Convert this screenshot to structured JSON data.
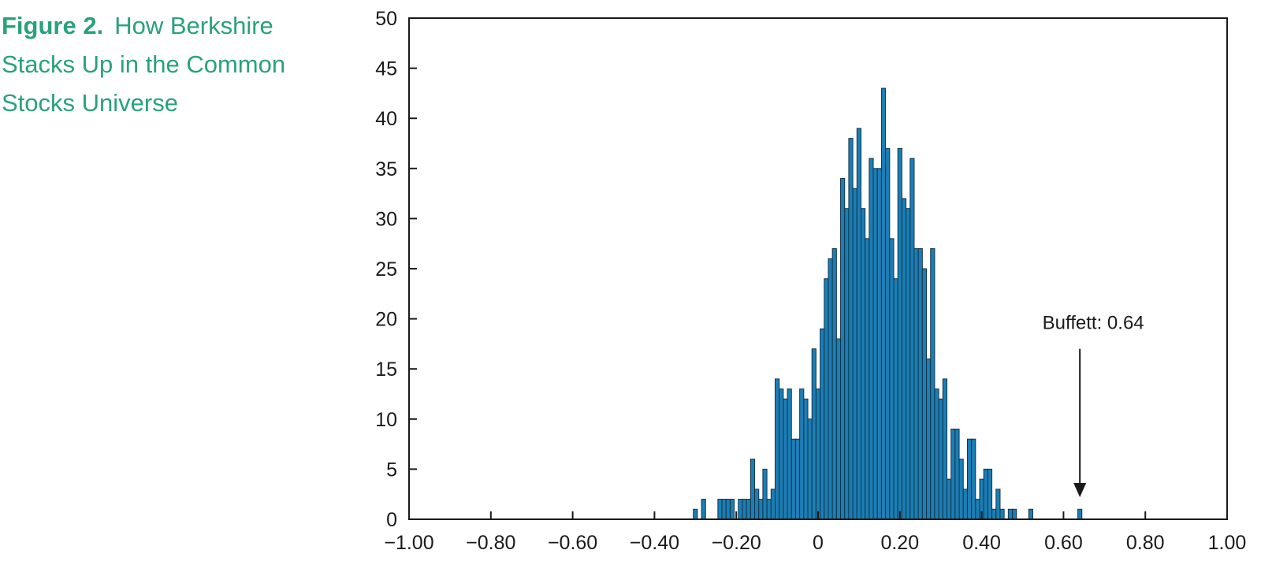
{
  "figure": {
    "label": "Figure 2.",
    "title_line1": "How Berkshire",
    "title_line2": "Stacks Up in the Common",
    "title_line3": "Stocks Universe",
    "title_color": "#29a17e"
  },
  "chart_data": {
    "type": "bar",
    "subtype": "histogram",
    "title": "Figure 2. How Berkshire Stacks Up in the Common Stocks Universe",
    "xlabel": "",
    "ylabel": "",
    "xlim": [
      -1.0,
      1.0
    ],
    "ylim": [
      0,
      50
    ],
    "grid": false,
    "legend": "none",
    "bin_start": -0.31,
    "bin_step": 0.01,
    "counts": [
      0,
      1,
      0,
      2,
      0,
      0,
      0,
      2,
      2,
      2,
      2,
      0,
      2,
      2,
      2,
      6,
      3,
      2,
      5,
      2,
      3,
      14,
      13,
      12,
      13,
      8,
      8,
      13,
      12,
      10,
      17,
      13,
      19,
      24,
      26,
      27,
      18,
      34,
      31,
      38,
      33,
      39,
      31,
      28,
      36,
      35,
      35,
      43,
      37,
      28,
      24,
      37,
      32,
      31,
      36,
      27,
      27,
      25,
      16,
      27,
      13,
      12,
      14,
      4,
      9,
      9,
      6,
      3,
      8,
      8,
      2,
      4,
      5,
      5,
      1,
      3,
      1,
      0,
      1,
      1,
      0,
      0,
      0,
      1,
      0,
      0,
      0,
      0,
      0,
      0,
      0,
      0,
      0,
      0,
      0,
      1
    ],
    "x_ticks": [
      -1.0,
      -0.8,
      -0.6,
      -0.4,
      -0.2,
      0,
      0.2,
      0.4,
      0.6,
      0.8,
      1.0
    ],
    "x_tick_labels": [
      "−1.00",
      "−0.80",
      "−0.60",
      "−0.40",
      "−0.20",
      "0",
      "0.20",
      "0.40",
      "0.60",
      "0.80",
      "1.00"
    ],
    "y_ticks": [
      0,
      5,
      10,
      15,
      20,
      25,
      30,
      35,
      40,
      45,
      50
    ],
    "y_tick_labels": [
      "0",
      "5",
      "10",
      "15",
      "20",
      "25",
      "30",
      "35",
      "40",
      "45",
      "50"
    ],
    "annotation": {
      "text": "Buffett: 0.64",
      "x": 0.64,
      "text_count": 19.6,
      "line_top_count": 17.0,
      "arrow_tip_count": 2.2
    },
    "colors": {
      "bar_fill": "#1b7eb5",
      "bar_stroke": "#13344a",
      "axis": "#1a1a1a",
      "text": "#1a1a1a"
    }
  }
}
